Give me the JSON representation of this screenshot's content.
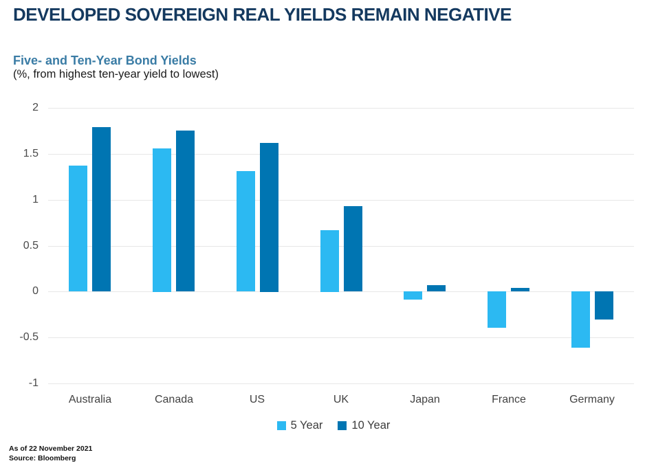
{
  "header": {
    "title": "DEVELOPED SOVEREIGN REAL YIELDS REMAIN NEGATIVE",
    "subtitle": "Five- and Ten-Year Bond Yields",
    "description": "(%, from highest ten-year yield to lowest)"
  },
  "chart_data": {
    "type": "bar",
    "title": "Five- and Ten-Year Bond Yields",
    "subtitle": "(%, from highest ten-year yield to lowest)",
    "categories": [
      "Australia",
      "Canada",
      "US",
      "UK",
      "Japan",
      "France",
      "Germany"
    ],
    "series": [
      {
        "name": "5 Year",
        "color": "#2CB9F2",
        "values": [
          1.37,
          1.56,
          1.31,
          0.67,
          -0.09,
          -0.4,
          -0.61
        ]
      },
      {
        "name": "10 Year",
        "color": "#0075B2",
        "values": [
          1.79,
          1.75,
          1.62,
          0.93,
          0.07,
          0.04,
          -0.31
        ]
      }
    ],
    "xlabel": "",
    "ylabel": "",
    "ylim": [
      -1,
      2
    ],
    "yticks": [
      2,
      1.5,
      1,
      0.5,
      0,
      -0.5,
      -1
    ],
    "grid": true,
    "legend_position": "bottom-center"
  },
  "footer": {
    "as_of": "As of 22 November 2021",
    "source": "Source: Bloomberg"
  },
  "colors": {
    "title_text": "#14395F",
    "subtitle_text": "#3A7CA5",
    "grid": "#E7E7E7",
    "axis_text": "#4A4A4A",
    "series_5yr": "#2CB9F2",
    "series_10yr": "#0075B2"
  }
}
